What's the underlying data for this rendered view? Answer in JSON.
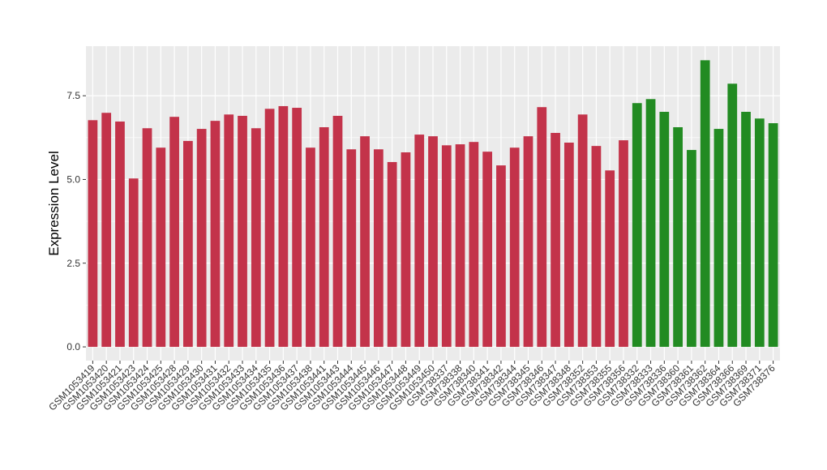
{
  "chart_data": {
    "type": "bar",
    "y_label": "Expression Level",
    "categories": [
      "GSM1053419",
      "GSM1053420",
      "GSM1053421",
      "GSM1053423",
      "GSM1053424",
      "GSM1053425",
      "GSM1053428",
      "GSM1053429",
      "GSM1053430",
      "GSM1053431",
      "GSM1053432",
      "GSM1053433",
      "GSM1053434",
      "GSM1053435",
      "GSM1053436",
      "GSM1053437",
      "GSM1053438",
      "GSM1053441",
      "GSM1053443",
      "GSM1053444",
      "GSM1053445",
      "GSM1053446",
      "GSM1053447",
      "GSM1053448",
      "GSM1053449",
      "GSM1053450",
      "GSM738337",
      "GSM738338",
      "GSM738340",
      "GSM738341",
      "GSM738342",
      "GSM738344",
      "GSM738345",
      "GSM738346",
      "GSM738347",
      "GSM738348",
      "GSM738352",
      "GSM738353",
      "GSM738355",
      "GSM738356",
      "GSM738332",
      "GSM738333",
      "GSM738336",
      "GSM738360",
      "GSM738361",
      "GSM738362",
      "GSM738364",
      "GSM738366",
      "GSM738369",
      "GSM738371",
      "GSM738376"
    ],
    "values": [
      6.77,
      6.99,
      6.73,
      5.03,
      6.53,
      5.95,
      6.87,
      6.15,
      6.51,
      6.75,
      6.94,
      6.9,
      6.53,
      7.11,
      7.19,
      7.14,
      5.95,
      6.56,
      6.9,
      5.9,
      6.29,
      5.9,
      5.52,
      5.81,
      6.34,
      6.29,
      6.02,
      6.05,
      6.12,
      5.83,
      5.42,
      5.95,
      6.29,
      7.16,
      6.39,
      6.1,
      6.94,
      6.0,
      5.27,
      6.17,
      7.28,
      7.4,
      7.02,
      6.56,
      5.88,
      8.56,
      6.51,
      7.86,
      7.02,
      6.82,
      6.68
    ],
    "colors": [
      "#c3334a",
      "#c3334a",
      "#c3334a",
      "#c3334a",
      "#c3334a",
      "#c3334a",
      "#c3334a",
      "#c3334a",
      "#c3334a",
      "#c3334a",
      "#c3334a",
      "#c3334a",
      "#c3334a",
      "#c3334a",
      "#c3334a",
      "#c3334a",
      "#c3334a",
      "#c3334a",
      "#c3334a",
      "#c3334a",
      "#c3334a",
      "#c3334a",
      "#c3334a",
      "#c3334a",
      "#c3334a",
      "#c3334a",
      "#c3334a",
      "#c3334a",
      "#c3334a",
      "#c3334a",
      "#c3334a",
      "#c3334a",
      "#c3334a",
      "#c3334a",
      "#c3334a",
      "#c3334a",
      "#c3334a",
      "#c3334a",
      "#c3334a",
      "#c3334a",
      "#228b22",
      "#228b22",
      "#228b22",
      "#228b22",
      "#228b22",
      "#228b22",
      "#228b22",
      "#228b22",
      "#228b22",
      "#228b22",
      "#228b22"
    ],
    "ylim": [
      -0.41,
      8.98
    ],
    "yticks": [
      {
        "value": 0,
        "label": "0.0"
      },
      {
        "value": 2.5,
        "label": "2.5"
      },
      {
        "value": 5,
        "label": "5.0"
      },
      {
        "value": 7.5,
        "label": "7.5"
      }
    ],
    "grid": true
  }
}
